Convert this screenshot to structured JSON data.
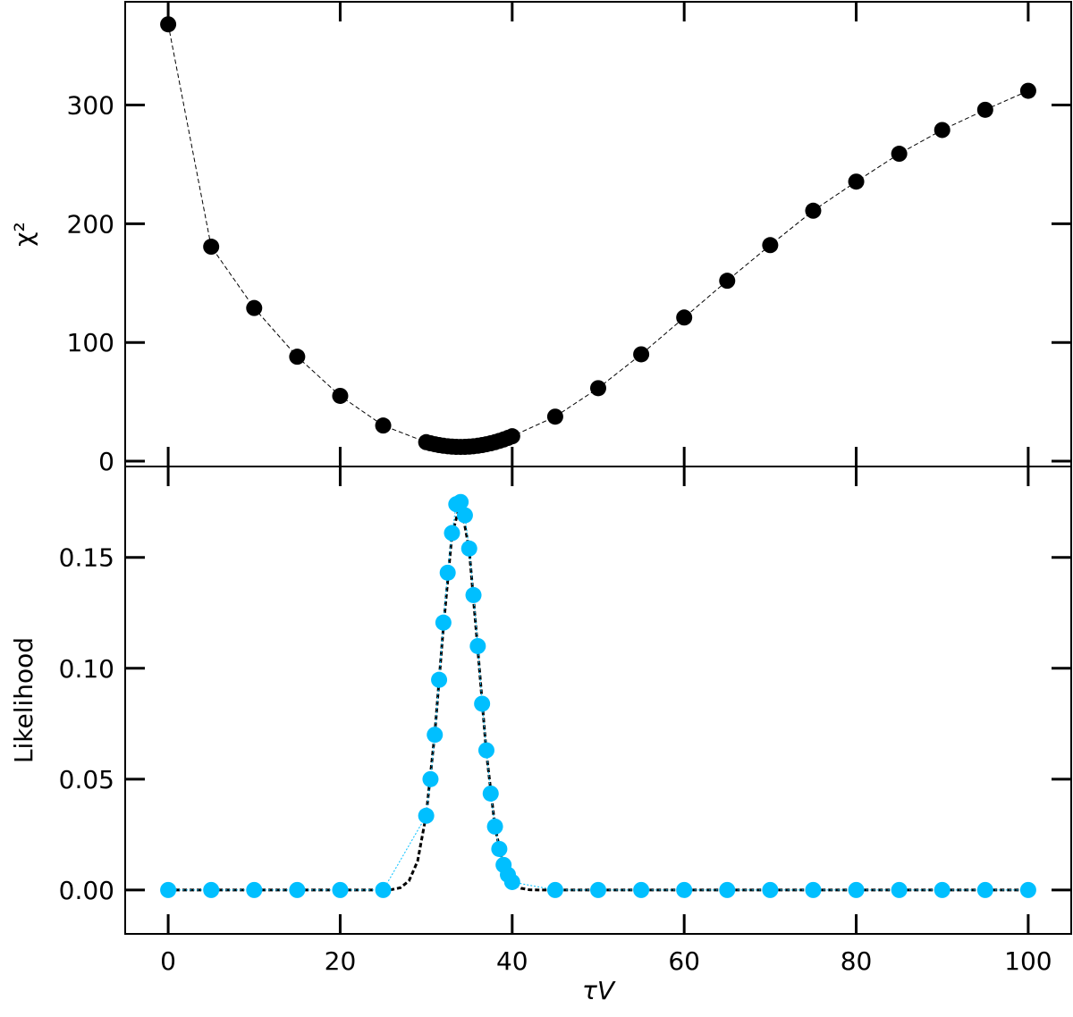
{
  "chart_data": [
    {
      "type": "line",
      "ylabel": "χ²",
      "xlim": [
        -5,
        105
      ],
      "xticks": [
        0,
        20,
        40,
        60,
        80,
        100
      ],
      "xticklabels": false,
      "ylim": [
        -4.5,
        387
      ],
      "yticks": [
        0,
        100,
        200,
        300
      ],
      "series": [
        {
          "color": "#000000",
          "linestyle": "dashed",
          "linewidth": 1,
          "marker": true,
          "x": [
            0,
            5,
            10,
            15,
            20,
            25,
            30,
            30.5,
            31,
            31.5,
            32,
            32.5,
            33,
            33.5,
            34,
            34.5,
            35,
            35.5,
            36,
            36.5,
            37,
            37.5,
            38,
            38.5,
            39,
            39.5,
            40,
            45,
            50,
            55,
            60,
            65,
            70,
            75,
            80,
            85,
            90,
            95,
            100
          ],
          "values": [
            368,
            180.7,
            129,
            88,
            55,
            30,
            16,
            15.06,
            14.25,
            13.56,
            13,
            12.56,
            12.25,
            12.06,
            12,
            12.06,
            12.25,
            12.56,
            13,
            13.56,
            14.25,
            15.06,
            16,
            17.06,
            18.25,
            19.56,
            21,
            37.5,
            61.5,
            90,
            121,
            152,
            182,
            211,
            235.5,
            259,
            279,
            296,
            312
          ]
        }
      ]
    },
    {
      "type": "line",
      "xlabel": "τV",
      "ylabel": "Likelihood",
      "xlim": [
        -5,
        105
      ],
      "xticks": [
        0,
        20,
        40,
        60,
        80,
        100
      ],
      "xticklabels": true,
      "ylim": [
        -0.0198,
        0.191
      ],
      "yticks": [
        {
          "value": 0,
          "label": "0.00"
        },
        {
          "value": 0.05,
          "label": "0.05"
        },
        {
          "value": 0.1,
          "label": "0.10"
        },
        {
          "value": 0.15,
          "label": "0.15"
        }
      ],
      "series": [
        {
          "color": "#00bfff",
          "linestyle": "dotted",
          "linewidth": 1,
          "marker": true,
          "x": [
            0,
            5,
            10,
            15,
            20,
            25,
            30,
            30.5,
            31,
            31.5,
            32,
            32.5,
            33,
            33.5,
            34,
            34.5,
            35,
            35.5,
            36,
            36.5,
            37,
            37.5,
            38,
            38.5,
            39,
            39.5,
            40,
            45,
            50,
            55,
            60,
            65,
            70,
            75,
            80,
            85,
            90,
            95,
            100
          ],
          "values": [
            0,
            0,
            0,
            0,
            0,
            0,
            0.0335,
            0.05,
            0.07,
            0.0948,
            0.1206,
            0.1431,
            0.161,
            0.174,
            0.175,
            0.169,
            0.154,
            0.133,
            0.11,
            0.084,
            0.063,
            0.0435,
            0.0286,
            0.0185,
            0.0113,
            0.0069,
            0.0036,
            0,
            0,
            0,
            0,
            0,
            0,
            0,
            0,
            0,
            0,
            0,
            0
          ]
        },
        {
          "color": "#000000",
          "linestyle": "dashed",
          "linewidth": 3,
          "marker": false,
          "x": [
            0,
            25,
            26,
            27,
            28,
            29,
            30,
            31,
            32,
            33,
            34,
            35,
            36,
            37,
            38,
            39,
            40,
            41,
            42,
            43,
            44,
            100
          ],
          "values": [
            0,
            0,
            0.0002,
            0.001,
            0.0041,
            0.013,
            0.0338,
            0.0705,
            0.1185,
            0.1603,
            0.1748,
            0.1535,
            0.1086,
            0.0619,
            0.0284,
            0.0105,
            0.0031,
            0.0008,
            0.0001,
            0,
            0,
            0
          ]
        }
      ]
    }
  ]
}
